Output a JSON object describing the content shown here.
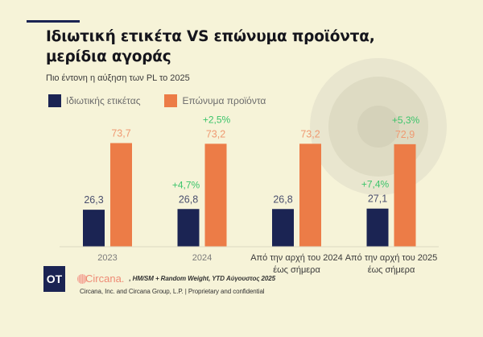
{
  "header": {
    "title": "Ιδιωτική ετικέτα VS επώνυμα προϊόντα, μερίδια αγοράς",
    "subtitle": "Πιο έντονη η αύξηση των PL το 2025"
  },
  "legend": [
    {
      "label": "Ιδιωτικής ετικέτας",
      "color": "#1b2453"
    },
    {
      "label": "Επώνυμα προϊόντα",
      "color": "#ec7c47"
    }
  ],
  "chart_data": {
    "type": "bar",
    "title": "Ιδιωτική ετικέτα VS επώνυμα προϊόντα, μερίδια αγοράς",
    "subtitle": "Πιο έντονη η αύξηση των PL το 2025",
    "xlabel": "",
    "ylabel": "",
    "ylim": [
      0,
      100
    ],
    "grid": false,
    "legend_position": "top-left",
    "categories": [
      [
        "2023"
      ],
      [
        "2024"
      ],
      [
        "Από την αρχή του 2024",
        "έως σήμερα"
      ],
      [
        "Από την αρχή του 2025",
        "έως σήμερα"
      ]
    ],
    "series": [
      {
        "name": "Ιδιωτικής ετικέτας",
        "color": "#1b2453",
        "label_color": "#4a4f6e",
        "values": [
          26.3,
          26.8,
          26.8,
          27.1
        ],
        "labels": [
          "26,3",
          "26,8",
          "26,8",
          "27,1"
        ],
        "changes": [
          "",
          "+4,7%",
          "",
          "+7,4%"
        ]
      },
      {
        "name": "Επώνυμα προϊόντα",
        "color": "#ec7c47",
        "label_color": "#ef9a72",
        "values": [
          73.7,
          73.2,
          73.2,
          72.9
        ],
        "labels": [
          "73,7",
          "73,2",
          "73,2",
          "72,9"
        ],
        "changes": [
          "",
          "+2,5%",
          "",
          "+5,3%"
        ]
      }
    ],
    "change_color": "#3cc46a"
  },
  "footer": {
    "badge": "OT",
    "brand": "Circana.",
    "source": ", HM/SM + Random Weight, YTD Αύγουστος 2025",
    "copyright": "Circana, Inc. and Circana Group, L.P. | Proprietary and confidential"
  }
}
